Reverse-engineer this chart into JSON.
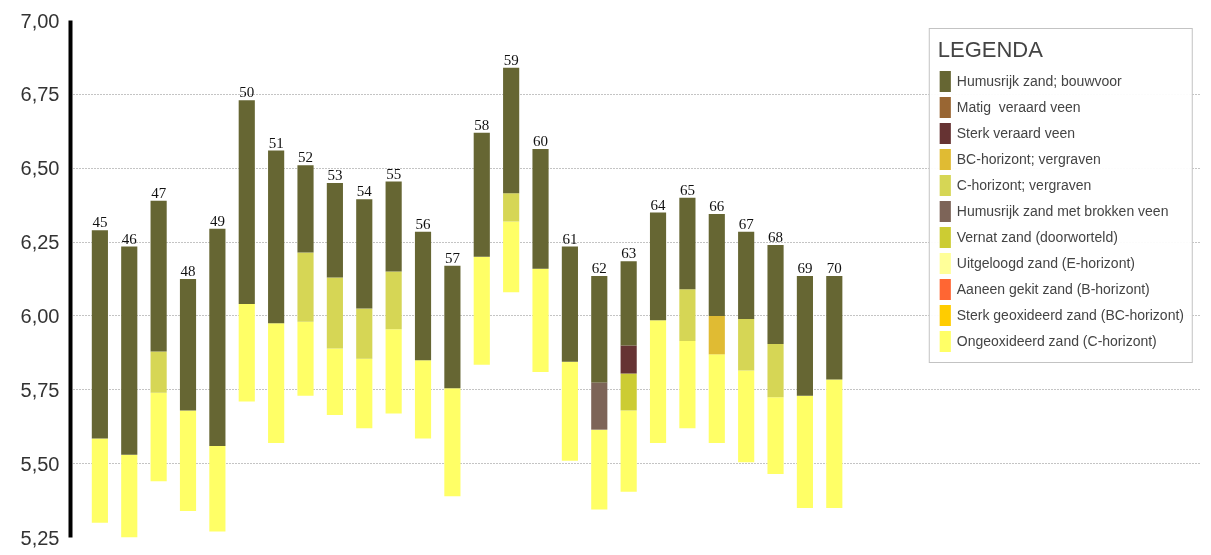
{
  "chart_data": {
    "type": "bar",
    "legend_title": "LEGENDA",
    "legend": "top right",
    "grid": "y",
    "tick_labels": "y",
    "categories": [
      "45",
      "46",
      "47",
      "48",
      "49",
      "50",
      "51",
      "52",
      "53",
      "54",
      "55",
      "56",
      "57",
      "58",
      "59",
      "60",
      "61",
      "62",
      "63",
      "64",
      "65",
      "66",
      "67",
      "68",
      "69",
      "70"
    ],
    "ylim": [
      5.25,
      7.0
    ],
    "yticks": [
      {
        "value": 5.25,
        "label": "5,25"
      },
      {
        "value": 5.5,
        "label": "5,50"
      },
      {
        "value": 5.75,
        "label": "5,75"
      },
      {
        "value": 6.0,
        "label": "6,00"
      },
      {
        "value": 6.25,
        "label": "6,25"
      },
      {
        "value": 6.5,
        "label": "6,50"
      },
      {
        "value": 6.75,
        "label": "6,75"
      },
      {
        "value": 7.0,
        "label": "7,00"
      }
    ],
    "series": [
      {
        "name": "Ongeoxideerd zand (C-horizont)",
        "color": "#ffff66",
        "base": [
          5.3,
          5.25,
          5.44,
          5.34,
          5.27,
          5.71,
          5.57,
          5.73,
          5.665,
          5.62,
          5.67,
          5.585,
          5.39,
          5.835,
          6.08,
          5.81,
          5.51,
          5.345,
          5.405,
          5.57,
          5.62,
          5.57,
          5.505,
          5.465,
          5.35,
          5.35
        ],
        "values": [
          0.285,
          0.28,
          0.3,
          0.34,
          0.29,
          0.33,
          0.405,
          0.25,
          0.225,
          0.235,
          0.285,
          0.265,
          0.365,
          0.365,
          0.24,
          0.35,
          0.335,
          0.27,
          0.275,
          0.415,
          0.295,
          0.3,
          0.31,
          0.26,
          0.38,
          0.435
        ]
      },
      {
        "name": "Sterk geoxideerd zand (BC-horizont)",
        "color": "#ffcc00",
        "values": [
          null,
          null,
          null,
          null,
          null,
          null,
          null,
          null,
          null,
          null,
          null,
          null,
          null,
          null,
          null,
          null,
          null,
          null,
          null,
          null,
          null,
          null,
          null,
          null,
          null,
          null
        ]
      },
      {
        "name": "Aaneen gekit zand (B-horizont)",
        "color": "#ff6633",
        "values": [
          null,
          null,
          null,
          null,
          null,
          null,
          null,
          null,
          null,
          null,
          null,
          null,
          null,
          null,
          null,
          null,
          null,
          null,
          null,
          null,
          null,
          null,
          null,
          null,
          null,
          null
        ]
      },
      {
        "name": "Uitgeloogd zand (E-horizont)",
        "color": "#ffff99",
        "values": [
          null,
          null,
          null,
          null,
          null,
          null,
          null,
          null,
          null,
          null,
          null,
          null,
          null,
          null,
          null,
          null,
          null,
          null,
          null,
          null,
          null,
          null,
          null,
          null,
          null,
          null
        ]
      },
      {
        "name": "Vernat zand (doorworteld)",
        "color": "#cccc33",
        "base": [
          null,
          null,
          null,
          null,
          null,
          null,
          null,
          null,
          null,
          null,
          null,
          null,
          null,
          null,
          null,
          null,
          null,
          null,
          5.68,
          null,
          null,
          null,
          null,
          null,
          null,
          null
        ],
        "values": [
          null,
          null,
          null,
          null,
          null,
          null,
          null,
          null,
          null,
          null,
          null,
          null,
          null,
          null,
          null,
          null,
          null,
          null,
          0.125,
          null,
          null,
          null,
          null,
          null,
          null,
          null
        ]
      },
      {
        "name": "Humusrijk zand met brokken veen",
        "color": "#7d6458",
        "base": [
          null,
          null,
          null,
          null,
          null,
          null,
          null,
          null,
          null,
          null,
          null,
          null,
          null,
          null,
          null,
          null,
          null,
          5.615,
          null,
          null,
          null,
          null,
          null,
          null,
          null,
          null
        ],
        "values": [
          null,
          null,
          null,
          null,
          null,
          null,
          null,
          null,
          null,
          null,
          null,
          null,
          null,
          null,
          null,
          null,
          null,
          0.16,
          null,
          null,
          null,
          null,
          null,
          null,
          null,
          null
        ]
      },
      {
        "name": "C-horizont; vergraven",
        "color": "#d6d655",
        "base": [
          null,
          null,
          5.74,
          null,
          null,
          null,
          null,
          5.98,
          5.89,
          5.855,
          5.955,
          null,
          null,
          null,
          6.32,
          null,
          null,
          null,
          null,
          null,
          5.915,
          null,
          5.815,
          5.725,
          null,
          null
        ],
        "values": [
          null,
          null,
          0.14,
          null,
          null,
          null,
          null,
          0.235,
          0.24,
          0.17,
          0.195,
          null,
          null,
          null,
          0.095,
          null,
          null,
          null,
          null,
          null,
          0.175,
          null,
          0.175,
          0.18,
          null,
          null
        ]
      },
      {
        "name": "BC-horizont; vergraven",
        "color": "#e0bb33",
        "base": [
          null,
          null,
          null,
          null,
          null,
          null,
          null,
          null,
          null,
          null,
          null,
          null,
          null,
          null,
          null,
          null,
          null,
          null,
          null,
          null,
          null,
          5.87,
          null,
          null,
          null,
          null
        ],
        "values": [
          null,
          null,
          null,
          null,
          null,
          null,
          null,
          null,
          null,
          null,
          null,
          null,
          null,
          null,
          null,
          null,
          null,
          null,
          null,
          null,
          null,
          0.13,
          null,
          null,
          null,
          null
        ]
      },
      {
        "name": "Sterk veraard veen",
        "color": "#663333",
        "base": [
          null,
          null,
          null,
          null,
          null,
          null,
          null,
          null,
          null,
          null,
          null,
          null,
          null,
          null,
          null,
          null,
          null,
          null,
          5.805,
          null,
          null,
          null,
          null,
          null,
          null,
          null
        ],
        "values": [
          null,
          null,
          null,
          null,
          null,
          null,
          null,
          null,
          null,
          null,
          null,
          null,
          null,
          null,
          null,
          null,
          null,
          null,
          0.095,
          null,
          null,
          null,
          null,
          null,
          null,
          null
        ]
      },
      {
        "name": "Matig  veraard veen",
        "color": "#996633",
        "values": [
          null,
          null,
          null,
          null,
          null,
          null,
          null,
          null,
          null,
          null,
          null,
          null,
          null,
          null,
          null,
          null,
          null,
          null,
          null,
          null,
          null,
          null,
          null,
          null,
          null,
          null
        ]
      },
      {
        "name": "Humusrijk zand; bouwvoor",
        "color": "#666633",
        "base": [
          5.585,
          5.53,
          5.88,
          5.68,
          5.56,
          6.04,
          5.975,
          6.215,
          6.13,
          6.025,
          6.15,
          5.85,
          5.755,
          6.2,
          6.415,
          6.16,
          5.845,
          5.775,
          5.9,
          5.985,
          6.09,
          6.0,
          5.99,
          5.905,
          5.73,
          5.785
        ],
        "values": [
          0.705,
          0.705,
          0.51,
          0.445,
          0.735,
          0.69,
          0.585,
          0.295,
          0.32,
          0.37,
          0.305,
          0.435,
          0.415,
          0.42,
          0.425,
          0.405,
          0.39,
          0.36,
          0.285,
          0.365,
          0.31,
          0.345,
          0.295,
          0.335,
          0.405,
          0.35
        ]
      }
    ]
  }
}
